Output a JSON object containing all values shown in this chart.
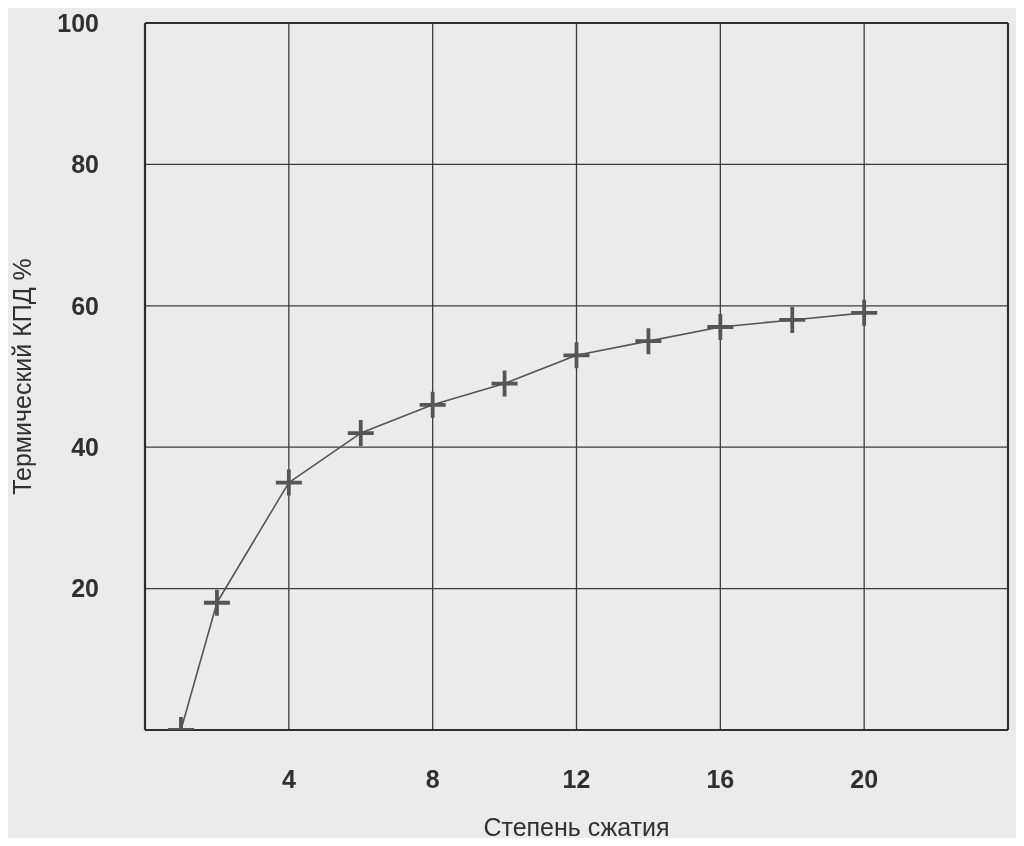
{
  "chart_data": {
    "type": "line",
    "xlabel": "Степень сжатия",
    "ylabel": "Термический КПД %",
    "x": [
      1,
      2,
      4,
      6,
      8,
      10,
      12,
      14,
      16,
      18,
      20
    ],
    "values": [
      0,
      18,
      35,
      42,
      46,
      49,
      53,
      55,
      57,
      58,
      59
    ],
    "color": "#555555",
    "xlim": [
      0,
      24
    ],
    "ylim": [
      0,
      100
    ],
    "xticks": [
      4,
      8,
      12,
      16,
      20
    ],
    "yticks": [
      20,
      40,
      60,
      80,
      100
    ],
    "grid": true,
    "marker": "cross",
    "line_style": "solid"
  }
}
